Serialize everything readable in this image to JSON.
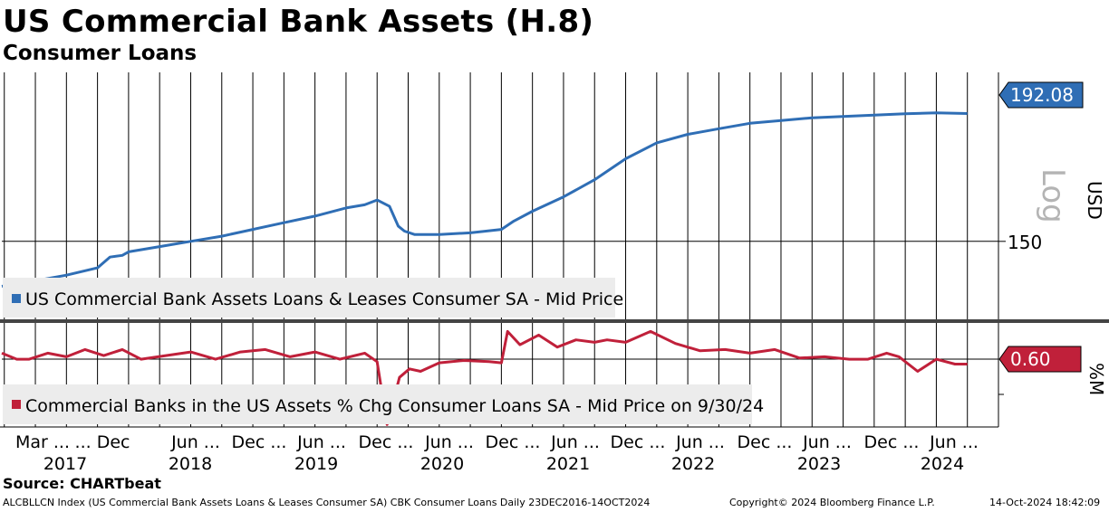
{
  "title": "US Commercial Bank Assets (H.8)",
  "subtitle": "Consumer Loans",
  "chart_data": [
    {
      "type": "line",
      "title": "US Commercial Bank Assets (H.8)",
      "legend": "US Commercial Bank Assets Loans & Leases Consumer SA - Mid Price",
      "legend_position": "bottom-left",
      "ylabel": "USD",
      "scale_label": "Log",
      "scale": "log",
      "yticks": [
        150
      ],
      "ylim": [
        129,
        208
      ],
      "last_value_label": "192.08",
      "color": "#2f6eb5",
      "x": [
        2016.98,
        2017.25,
        2017.5,
        2017.75,
        2017.85,
        2017.95,
        2018.0,
        2018.25,
        2018.5,
        2018.75,
        2019.0,
        2019.25,
        2019.5,
        2019.75,
        2019.9,
        2020.0,
        2020.1,
        2020.17,
        2020.22,
        2020.3,
        2020.5,
        2020.75,
        2021.0,
        2021.1,
        2021.25,
        2021.5,
        2021.75,
        2022.0,
        2022.25,
        2022.5,
        2022.75,
        2023.0,
        2023.25,
        2023.5,
        2023.75,
        2024.0,
        2024.25,
        2024.5,
        2024.75
      ],
      "values": [
        137.5,
        139.0,
        140.5,
        142.5,
        145.5,
        146.0,
        147.0,
        148.5,
        150.0,
        151.5,
        153.5,
        155.5,
        157.5,
        160.0,
        161.0,
        162.5,
        160.5,
        154.5,
        153.0,
        152.0,
        152.0,
        152.5,
        153.5,
        156.0,
        159.0,
        163.5,
        169.0,
        176.0,
        181.5,
        184.5,
        186.5,
        188.5,
        189.5,
        190.5,
        191.0,
        191.5,
        192.0,
        192.3,
        192.08
      ]
    },
    {
      "type": "line",
      "legend": "Commercial Banks in the US Assets % Chg Consumer Loans SA - Mid Price on 9/30/24",
      "legend_position": "bottom-left",
      "ylabel": "%M",
      "ylim": [
        -4.6,
        4.0
      ],
      "last_value_label": "0.60",
      "color": "#c0203a",
      "x": [
        2016.98,
        2017.1,
        2017.2,
        2017.35,
        2017.5,
        2017.65,
        2017.8,
        2017.95,
        2018.1,
        2018.3,
        2018.5,
        2018.7,
        2018.9,
        2019.1,
        2019.3,
        2019.5,
        2019.7,
        2019.9,
        2020.0,
        2020.08,
        2020.13,
        2020.18,
        2020.26,
        2020.35,
        2020.5,
        2020.7,
        2020.9,
        2021.0,
        2021.05,
        2021.15,
        2021.3,
        2021.45,
        2021.6,
        2021.75,
        2021.85,
        2022.0,
        2022.2,
        2022.4,
        2022.6,
        2022.8,
        2023.0,
        2023.2,
        2023.4,
        2023.6,
        2023.8,
        2023.95,
        2024.1,
        2024.2,
        2024.35,
        2024.5,
        2024.65,
        2024.75
      ],
      "values": [
        1.5,
        1.0,
        1.0,
        1.5,
        1.2,
        1.8,
        1.3,
        1.8,
        1.0,
        1.3,
        1.6,
        1.0,
        1.6,
        1.8,
        1.2,
        1.6,
        1.0,
        1.5,
        0.8,
        -4.4,
        -2.5,
        -0.5,
        0.2,
        0.0,
        0.7,
        0.9,
        0.8,
        0.7,
        3.3,
        2.2,
        3.0,
        2.0,
        2.6,
        2.4,
        2.6,
        2.4,
        3.3,
        2.3,
        1.7,
        1.8,
        1.5,
        1.8,
        1.1,
        1.2,
        1.0,
        1.0,
        1.5,
        1.2,
        0.0,
        1.0,
        0.6,
        0.6
      ]
    }
  ],
  "x_axis": {
    "month_labels": [
      "Mar ...",
      "... Dec",
      "Jun ...",
      "Dec ...",
      "Jun ...",
      "Dec ...",
      "Jun ...",
      "Dec ...",
      "Jun ...",
      "Dec ...",
      "Jun ...",
      "Dec ...",
      "Jun ...",
      "Dec ...",
      "Jun ..."
    ],
    "year_labels": [
      "2017",
      "2018",
      "2019",
      "2020",
      "2021",
      "2022",
      "2023",
      "2024"
    ]
  },
  "source": "Source: CHARTbeat",
  "footer": {
    "description": "ALCBLLCN Index (US Commercial Bank Assets Loans & Leases Consumer SA) CBK Consumer Loans  Daily 23DEC2016-14OCT2024",
    "copyright": "Copyright© 2024 Bloomberg Finance L.P.",
    "timestamp": "14-Oct-2024 18:42:09"
  }
}
